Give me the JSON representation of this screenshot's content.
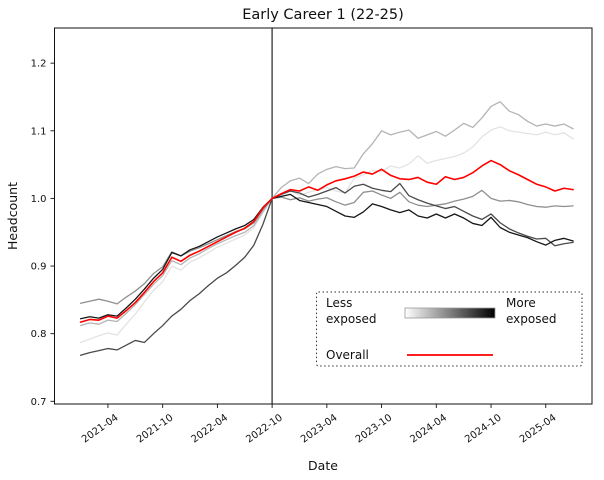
{
  "chart_data": {
    "type": "line",
    "title": "Early Career 1 (22-25)",
    "xlabel": "Date",
    "ylabel": "Headcount",
    "grid": false,
    "ylim": [
      0.696,
      1.252
    ],
    "xlim_months": [
      -2.86,
      56.07
    ],
    "y_ticks": [
      {
        "label": "0.7",
        "v": 0.7
      },
      {
        "label": "0.8",
        "v": 0.8
      },
      {
        "label": "0.9",
        "v": 0.9
      },
      {
        "label": "1.0",
        "v": 1.0
      },
      {
        "label": "1.1",
        "v": 1.1
      },
      {
        "label": "1.2",
        "v": 1.2
      }
    ],
    "x_ticks": [
      {
        "label": "2021-04",
        "m": 3
      },
      {
        "label": "2021-10",
        "m": 9
      },
      {
        "label": "2022-04",
        "m": 15
      },
      {
        "label": "2022-10",
        "m": 21
      },
      {
        "label": "2023-04",
        "m": 27
      },
      {
        "label": "2023-10",
        "m": 33
      },
      {
        "label": "2024-04",
        "m": 39
      },
      {
        "label": "2024-10",
        "m": 45
      },
      {
        "label": "2025-04",
        "m": 51
      }
    ],
    "vline": {
      "at_month": "2022-10",
      "m": 21,
      "color": "#333333"
    },
    "x": [
      "2021-01",
      "2021-02",
      "2021-03",
      "2021-04",
      "2021-05",
      "2021-06",
      "2021-07",
      "2021-08",
      "2021-09",
      "2021-10",
      "2021-11",
      "2021-12",
      "2022-01",
      "2022-02",
      "2022-03",
      "2022-04",
      "2022-05",
      "2022-06",
      "2022-07",
      "2022-08",
      "2022-09",
      "2022-10",
      "2022-11",
      "2022-12",
      "2023-01",
      "2023-02",
      "2023-03",
      "2023-04",
      "2023-05",
      "2023-06",
      "2023-07",
      "2023-08",
      "2023-09",
      "2023-10",
      "2023-11",
      "2023-12",
      "2024-01",
      "2024-02",
      "2024-03",
      "2024-04",
      "2024-05",
      "2024-06",
      "2024-07",
      "2024-08",
      "2024-09",
      "2024-10",
      "2024-11",
      "2024-12",
      "2025-01",
      "2025-02",
      "2025-03",
      "2025-04",
      "2025-05",
      "2025-06",
      "2025-07"
    ],
    "series": [
      {
        "name": "exposure-quintile-1-least-exposed",
        "color": "#e3e3e3",
        "width": 1.3,
        "values": [
          0.787,
          0.792,
          0.797,
          0.801,
          0.798,
          0.814,
          0.829,
          0.847,
          0.864,
          0.877,
          0.9,
          0.894,
          0.906,
          0.912,
          0.92,
          0.928,
          0.934,
          0.94,
          0.946,
          0.957,
          0.979,
          1.0,
          1.006,
          1.011,
          1.005,
          1.009,
          1.013,
          1.016,
          1.011,
          1.008,
          1.03,
          1.035,
          1.041,
          1.04,
          1.048,
          1.045,
          1.051,
          1.063,
          1.052,
          1.056,
          1.059,
          1.062,
          1.067,
          1.076,
          1.091,
          1.101,
          1.106,
          1.1,
          1.098,
          1.096,
          1.094,
          1.098,
          1.094,
          1.097,
          1.088
        ]
      },
      {
        "name": "exposure-quintile-2",
        "color": "#b4b4b4",
        "width": 1.3,
        "values": [
          0.812,
          0.816,
          0.814,
          0.82,
          0.818,
          0.83,
          0.843,
          0.858,
          0.873,
          0.886,
          0.908,
          0.902,
          0.912,
          0.918,
          0.926,
          0.933,
          0.939,
          0.945,
          0.95,
          0.96,
          0.981,
          1.0,
          1.016,
          1.026,
          1.03,
          1.022,
          1.036,
          1.043,
          1.047,
          1.044,
          1.045,
          1.066,
          1.081,
          1.1,
          1.094,
          1.098,
          1.101,
          1.089,
          1.094,
          1.099,
          1.092,
          1.101,
          1.111,
          1.105,
          1.119,
          1.136,
          1.143,
          1.129,
          1.124,
          1.114,
          1.107,
          1.11,
          1.107,
          1.11,
          1.103
        ]
      },
      {
        "name": "exposure-quintile-3",
        "color": "#8f8f8f",
        "width": 1.3,
        "values": [
          0.845,
          0.848,
          0.851,
          0.848,
          0.844,
          0.854,
          0.863,
          0.874,
          0.889,
          0.899,
          0.921,
          0.915,
          0.922,
          0.927,
          0.933,
          0.939,
          0.945,
          0.951,
          0.955,
          0.964,
          0.984,
          1.0,
          1.002,
          0.998,
          1.001,
          0.996,
          0.999,
          1.001,
          0.995,
          0.99,
          0.994,
          1.009,
          1.011,
          1.005,
          1.0,
          1.009,
          0.995,
          0.99,
          0.988,
          0.99,
          0.992,
          0.996,
          0.999,
          1.003,
          1.012,
          1.0,
          0.996,
          0.997,
          0.995,
          0.991,
          0.988,
          0.987,
          0.989,
          0.988,
          0.989
        ]
      },
      {
        "name": "exposure-quintile-4",
        "color": "#4a4a4a",
        "width": 1.3,
        "values": [
          0.768,
          0.772,
          0.775,
          0.778,
          0.776,
          0.783,
          0.79,
          0.787,
          0.8,
          0.812,
          0.826,
          0.836,
          0.849,
          0.859,
          0.871,
          0.882,
          0.89,
          0.901,
          0.913,
          0.931,
          0.962,
          1.0,
          1.006,
          1.011,
          1.008,
          1.002,
          1.006,
          1.011,
          1.016,
          1.008,
          1.018,
          1.021,
          1.015,
          1.012,
          1.01,
          1.022,
          1.004,
          0.998,
          0.993,
          0.989,
          0.985,
          0.988,
          0.981,
          0.974,
          0.969,
          0.977,
          0.964,
          0.955,
          0.949,
          0.944,
          0.94,
          0.941,
          0.93,
          0.933,
          0.935
        ]
      },
      {
        "name": "exposure-quintile-5-most-exposed",
        "color": "#161616",
        "width": 1.3,
        "values": [
          0.822,
          0.825,
          0.823,
          0.828,
          0.826,
          0.838,
          0.851,
          0.866,
          0.882,
          0.895,
          0.92,
          0.915,
          0.924,
          0.929,
          0.936,
          0.943,
          0.949,
          0.955,
          0.96,
          0.969,
          0.987,
          1.0,
          1.003,
          1.006,
          0.997,
          0.994,
          0.991,
          0.988,
          0.981,
          0.974,
          0.972,
          0.98,
          0.992,
          0.988,
          0.983,
          0.979,
          0.983,
          0.974,
          0.971,
          0.977,
          0.971,
          0.977,
          0.971,
          0.963,
          0.96,
          0.972,
          0.957,
          0.95,
          0.946,
          0.942,
          0.936,
          0.931,
          0.938,
          0.941,
          0.937
        ]
      },
      {
        "name": "overall",
        "color": "#ff0000",
        "width": 1.6,
        "values": [
          0.817,
          0.821,
          0.82,
          0.826,
          0.823,
          0.834,
          0.846,
          0.861,
          0.877,
          0.89,
          0.913,
          0.907,
          0.916,
          0.922,
          0.929,
          0.936,
          0.943,
          0.95,
          0.956,
          0.966,
          0.986,
          1.0,
          1.007,
          1.013,
          1.011,
          1.017,
          1.012,
          1.02,
          1.026,
          1.029,
          1.033,
          1.039,
          1.036,
          1.043,
          1.034,
          1.029,
          1.028,
          1.031,
          1.024,
          1.021,
          1.032,
          1.028,
          1.031,
          1.038,
          1.048,
          1.056,
          1.05,
          1.041,
          1.035,
          1.028,
          1.021,
          1.017,
          1.011,
          1.015,
          1.013
        ]
      }
    ],
    "colors": {
      "overall": "#ff0000",
      "gradient_start": "#ffffff",
      "gradient_end": "#000000"
    }
  },
  "legend": {
    "less_line1": "Less",
    "less_line2": "exposed",
    "more_line1": "More",
    "more_line2": "exposed",
    "overall": "Overall"
  }
}
